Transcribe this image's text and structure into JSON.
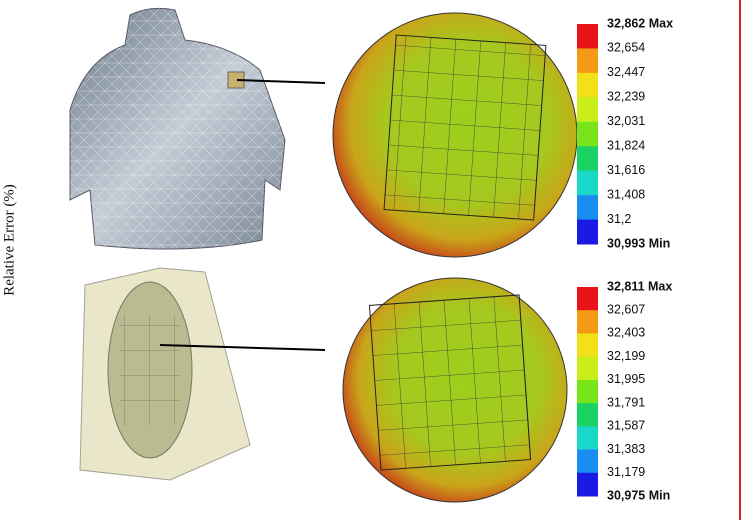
{
  "axis_label": "Relative Error (%)",
  "legends": [
    {
      "colors": [
        "#e8141a",
        "#f59a14",
        "#f2e018",
        "#c9ee1a",
        "#78e41a",
        "#1ad264",
        "#1ad8c8",
        "#1a8ef0",
        "#1a1ae6"
      ],
      "labels": [
        "32,862 Max",
        "32,654",
        "32,447",
        "32,239",
        "32,031",
        "31,824",
        "31,616",
        "31,408",
        "31,2",
        "30,993 Min"
      ]
    },
    {
      "colors": [
        "#e8141a",
        "#f59a14",
        "#f2e018",
        "#c9ee1a",
        "#78e41a",
        "#1ad264",
        "#1ad8c8",
        "#1a8ef0",
        "#1a1ae6"
      ],
      "labels": [
        "32,811 Max",
        "32,607",
        "32,403",
        "32,199",
        "31,995",
        "31,791",
        "31,587",
        "31,383",
        "31,179",
        "30,975 Min"
      ]
    }
  ]
}
